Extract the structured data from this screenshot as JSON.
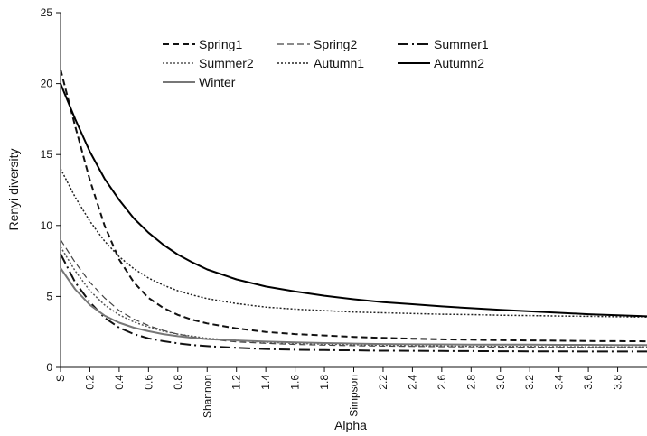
{
  "chart_data": {
    "type": "line",
    "xlabel": "Alpha",
    "ylabel": "Renyi diversity",
    "ylim": [
      0,
      25
    ],
    "yticks": [
      "0",
      "5",
      "10",
      "15",
      "20",
      "25"
    ],
    "xlim": [
      0,
      4
    ],
    "xticks": [
      {
        "x": 0,
        "label": "S"
      },
      {
        "x": 0.2,
        "label": "0.2"
      },
      {
        "x": 0.4,
        "label": "0.4"
      },
      {
        "x": 0.6,
        "label": "0.6"
      },
      {
        "x": 0.8,
        "label": "0.8"
      },
      {
        "x": 1.0,
        "label": "Shannon"
      },
      {
        "x": 1.2,
        "label": "1.2"
      },
      {
        "x": 1.4,
        "label": "1.4"
      },
      {
        "x": 1.6,
        "label": "1.6"
      },
      {
        "x": 1.8,
        "label": "1.8"
      },
      {
        "x": 2.0,
        "label": "Simpson"
      },
      {
        "x": 2.2,
        "label": "2.2"
      },
      {
        "x": 2.4,
        "label": "2.4"
      },
      {
        "x": 2.6,
        "label": "2.6"
      },
      {
        "x": 2.8,
        "label": "2.8"
      },
      {
        "x": 3.0,
        "label": "3.0"
      },
      {
        "x": 3.2,
        "label": "3.2"
      },
      {
        "x": 3.4,
        "label": "3.4"
      },
      {
        "x": 3.6,
        "label": "3.6"
      },
      {
        "x": 3.8,
        "label": "3.8"
      }
    ],
    "grid": false,
    "legend_position": "top-right",
    "x": [
      0,
      0.1,
      0.2,
      0.3,
      0.4,
      0.5,
      0.6,
      0.7,
      0.8,
      0.9,
      1.0,
      1.2,
      1.4,
      1.6,
      1.8,
      2.0,
      2.2,
      2.4,
      2.6,
      2.8,
      3.0,
      3.2,
      3.4,
      3.6,
      3.8,
      4.0
    ],
    "series": [
      {
        "name": "Spring1",
        "color": "#111111",
        "stroke_width": 2,
        "dash": "7,4",
        "values": [
          21.0,
          17.0,
          13.2,
          10.0,
          7.6,
          6.0,
          4.9,
          4.2,
          3.7,
          3.35,
          3.1,
          2.75,
          2.5,
          2.35,
          2.25,
          2.15,
          2.08,
          2.02,
          1.98,
          1.95,
          1.92,
          1.9,
          1.88,
          1.86,
          1.85,
          1.84
        ]
      },
      {
        "name": "Spring2",
        "color": "#444444",
        "stroke_width": 1.2,
        "dash": "7,4",
        "values": [
          9.0,
          7.4,
          6.0,
          4.9,
          4.0,
          3.4,
          2.95,
          2.6,
          2.35,
          2.15,
          2.0,
          1.8,
          1.7,
          1.62,
          1.57,
          1.53,
          1.5,
          1.48,
          1.46,
          1.45,
          1.44,
          1.43,
          1.42,
          1.41,
          1.41,
          1.4
        ]
      },
      {
        "name": "Summer1",
        "color": "#111111",
        "stroke_width": 2,
        "dash": "12,4,2,4",
        "values": [
          8.0,
          6.0,
          4.6,
          3.5,
          2.8,
          2.35,
          2.05,
          1.85,
          1.7,
          1.58,
          1.5,
          1.38,
          1.3,
          1.25,
          1.22,
          1.2,
          1.18,
          1.17,
          1.16,
          1.15,
          1.14,
          1.13,
          1.13,
          1.12,
          1.12,
          1.12
        ]
      },
      {
        "name": "Summer2",
        "color": "#555555",
        "stroke_width": 1.5,
        "dash": "2,2",
        "values": [
          8.5,
          6.8,
          5.4,
          4.4,
          3.7,
          3.2,
          2.85,
          2.55,
          2.35,
          2.2,
          2.05,
          1.9,
          1.78,
          1.7,
          1.65,
          1.6,
          1.56,
          1.53,
          1.51,
          1.49,
          1.48,
          1.47,
          1.46,
          1.45,
          1.44,
          1.44
        ]
      },
      {
        "name": "Autumn1",
        "color": "#222222",
        "stroke_width": 1.5,
        "dash": "2,2",
        "values": [
          14.0,
          12.0,
          10.3,
          8.9,
          7.8,
          6.95,
          6.3,
          5.8,
          5.4,
          5.1,
          4.85,
          4.5,
          4.25,
          4.1,
          4.0,
          3.9,
          3.85,
          3.8,
          3.75,
          3.72,
          3.68,
          3.65,
          3.62,
          3.6,
          3.57,
          3.55
        ]
      },
      {
        "name": "Autumn2",
        "color": "#000000",
        "stroke_width": 2,
        "dash": "",
        "values": [
          20.0,
          17.5,
          15.2,
          13.3,
          11.8,
          10.5,
          9.5,
          8.65,
          7.95,
          7.4,
          6.9,
          6.2,
          5.7,
          5.35,
          5.05,
          4.8,
          4.6,
          4.45,
          4.3,
          4.17,
          4.05,
          3.95,
          3.85,
          3.75,
          3.67,
          3.6
        ]
      },
      {
        "name": "Winter",
        "color": "#777777",
        "stroke_width": 2,
        "dash": "",
        "values": [
          7.0,
          5.5,
          4.4,
          3.65,
          3.15,
          2.8,
          2.55,
          2.35,
          2.2,
          2.08,
          2.0,
          1.9,
          1.82,
          1.76,
          1.72,
          1.68,
          1.65,
          1.63,
          1.62,
          1.61,
          1.6,
          1.6,
          1.59,
          1.59,
          1.58,
          1.58
        ]
      }
    ]
  }
}
